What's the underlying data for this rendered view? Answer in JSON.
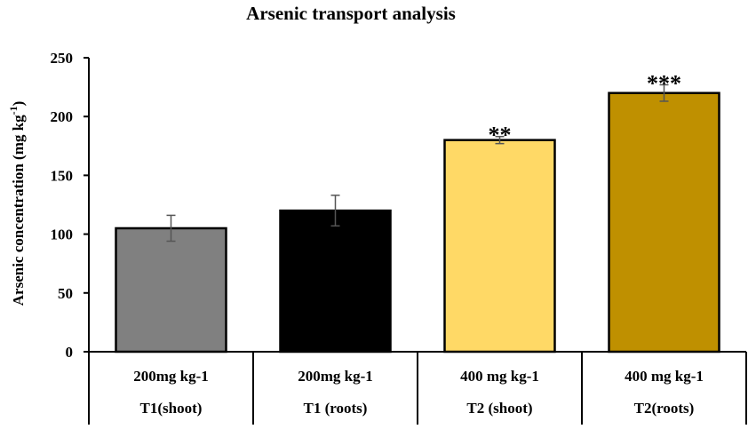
{
  "chart_data": {
    "type": "bar",
    "title": "Arsenic transport analysis",
    "ylabel_main": "Arsenic concentration",
    "ylabel_unit_prefix": "(mg kg",
    "ylabel_unit_exp": "-1",
    "ylabel_unit_suffix": ")",
    "ylim": [
      0,
      250
    ],
    "yticks": [
      0,
      50,
      100,
      150,
      200,
      250
    ],
    "categories": [
      {
        "dose": "200mg kg-1",
        "group": "T1(shoot)"
      },
      {
        "dose": "200mg kg-1",
        "group": "T1 (roots)"
      },
      {
        "dose": "400 mg kg-1",
        "group": "T2 (shoot)"
      },
      {
        "dose": "400 mg kg-1",
        "group": "T2(roots)"
      }
    ],
    "values": [
      105,
      120,
      180,
      220
    ],
    "errors": [
      11,
      13,
      3,
      7
    ],
    "significance": [
      "",
      "",
      "**",
      "***"
    ],
    "colors": [
      "#808080",
      "#000000",
      "#FFD966",
      "#BF9000"
    ]
  }
}
